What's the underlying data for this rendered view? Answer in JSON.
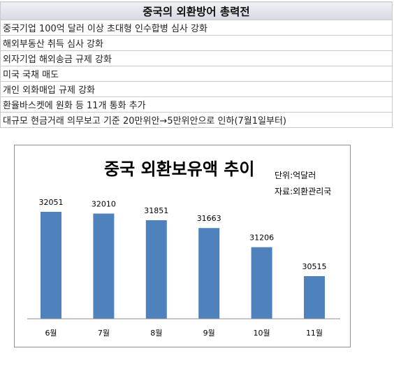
{
  "table": {
    "header": "중국의 외환방어 총력전",
    "rows": [
      "중국기업 100억 달러 이상 초대형 인수합병 심사 강화",
      "해외부동산 취득 심사 강화",
      "외자기업 해외송금 규제 강화",
      "미국 국채 매도",
      "개인 외화매입 규제 강화",
      "환율바스켓에 원화 등 11개 통화 추가",
      "대규모 현금거래 의무보고 기준 20만위안→5만위안으로 인하(7월1일부터)"
    ]
  },
  "chart_data": {
    "type": "bar",
    "title": "중국 외환보유액 추이",
    "unit_note": "단위:억달러",
    "source_note": "자료:외환관리국",
    "categories": [
      "6월",
      "7월",
      "8월",
      "9월",
      "10월",
      "11월"
    ],
    "values": [
      32051,
      32010,
      31851,
      31663,
      31206,
      30515
    ],
    "bar_color": "#4f81bd",
    "grid": false,
    "legend": "none"
  }
}
